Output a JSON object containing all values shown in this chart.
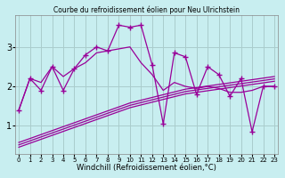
{
  "title": "Courbe du refroidissement éolien pour Neu Ulrichstein",
  "xlabel": "Windchill (Refroidissement éolien,°C)",
  "bg_color": "#c8eef0",
  "line_color": "#990099",
  "grid_color": "#aacccc",
  "x_data": [
    0,
    1,
    2,
    3,
    4,
    5,
    6,
    7,
    8,
    9,
    10,
    11,
    12,
    13,
    14,
    15,
    16,
    17,
    18,
    19,
    20,
    21,
    22,
    23
  ],
  "y_spiky": [
    1.4,
    2.2,
    1.9,
    2.5,
    1.9,
    2.45,
    2.8,
    3.0,
    2.9,
    3.55,
    3.5,
    3.55,
    2.55,
    1.05,
    2.85,
    2.75,
    1.8,
    2.5,
    2.3,
    1.75,
    2.2,
    0.85,
    2.0,
    2.0
  ],
  "y_smooth": [
    1.4,
    2.2,
    2.1,
    2.5,
    2.25,
    2.45,
    2.6,
    2.85,
    2.9,
    2.95,
    3.0,
    2.6,
    2.3,
    1.9,
    2.1,
    2.0,
    1.95,
    2.0,
    1.95,
    1.85,
    1.85,
    1.9,
    2.0,
    2.0
  ],
  "trend1": [
    0.58,
    0.68,
    0.78,
    0.88,
    0.98,
    1.08,
    1.18,
    1.28,
    1.38,
    1.48,
    1.58,
    1.65,
    1.72,
    1.79,
    1.86,
    1.93,
    1.97,
    2.01,
    2.05,
    2.09,
    2.13,
    2.17,
    2.21,
    2.25
  ],
  "trend2": [
    0.52,
    0.62,
    0.72,
    0.82,
    0.92,
    1.02,
    1.12,
    1.22,
    1.32,
    1.42,
    1.52,
    1.59,
    1.66,
    1.73,
    1.8,
    1.87,
    1.91,
    1.95,
    1.99,
    2.03,
    2.07,
    2.11,
    2.15,
    2.19
  ],
  "trend3": [
    0.46,
    0.56,
    0.66,
    0.76,
    0.86,
    0.96,
    1.06,
    1.16,
    1.26,
    1.36,
    1.46,
    1.53,
    1.6,
    1.67,
    1.74,
    1.81,
    1.85,
    1.89,
    1.93,
    1.97,
    2.01,
    2.05,
    2.09,
    2.13
  ],
  "ylim": [
    0.3,
    3.8
  ],
  "xlim": [
    -0.3,
    23.3
  ],
  "yticks": [
    1,
    2,
    3
  ],
  "xtick_labels": [
    "0",
    "1",
    "2",
    "3",
    "4",
    "5",
    "6",
    "7",
    "8",
    "9",
    "10",
    "11",
    "12",
    "13",
    "14",
    "15",
    "16",
    "17",
    "18",
    "19",
    "20",
    "21",
    "22",
    "23"
  ]
}
